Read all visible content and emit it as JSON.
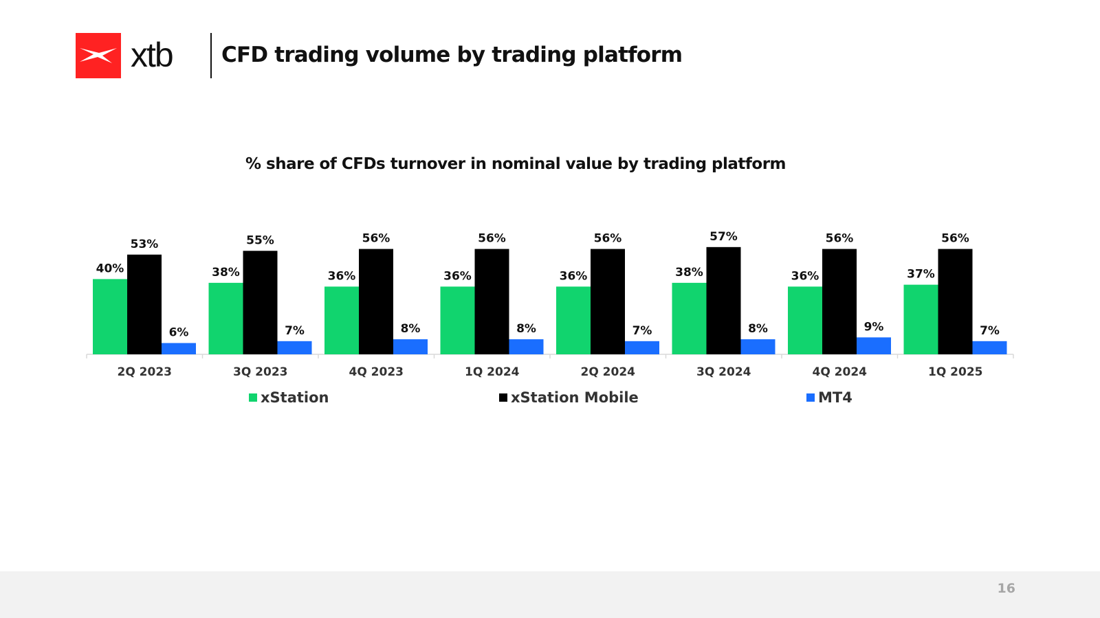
{
  "brand": {
    "logo_text": "xtb",
    "logo_color": "#ff2222"
  },
  "header": {
    "title": "CFD trading volume by trading platform"
  },
  "chart_data": {
    "type": "bar",
    "title": "% share of CFDs turnover in nominal value by trading platform",
    "categories": [
      "2Q 2023",
      "3Q 2023",
      "4Q 2023",
      "1Q 2024",
      "2Q 2024",
      "3Q 2024",
      "4Q 2024",
      "1Q 2025"
    ],
    "series": [
      {
        "name": "xStation",
        "color": "#11d46e",
        "values": [
          40,
          38,
          36,
          36,
          36,
          38,
          36,
          37
        ],
        "labels": [
          "40%",
          "38%",
          "36%",
          "36%",
          "36%",
          "38%",
          "36%",
          "37%"
        ]
      },
      {
        "name": "xStation Mobile",
        "color": "#000000",
        "values": [
          53,
          55,
          56,
          56,
          56,
          57,
          56,
          56
        ],
        "labels": [
          "53%",
          "55%",
          "56%",
          "56%",
          "56%",
          "57%",
          "56%",
          "56%"
        ]
      },
      {
        "name": "MT4",
        "color": "#1a6eff",
        "values": [
          6,
          7,
          8,
          8,
          7,
          8,
          9,
          7
        ],
        "labels": [
          "6%",
          "7%",
          "8%",
          "8%",
          "7%",
          "8%",
          "9%",
          "7%"
        ]
      }
    ],
    "ylim": [
      0,
      60
    ],
    "xlabel": "",
    "ylabel": "",
    "grid": false,
    "legend": "bottom"
  },
  "footer": {
    "page_number": "16"
  }
}
